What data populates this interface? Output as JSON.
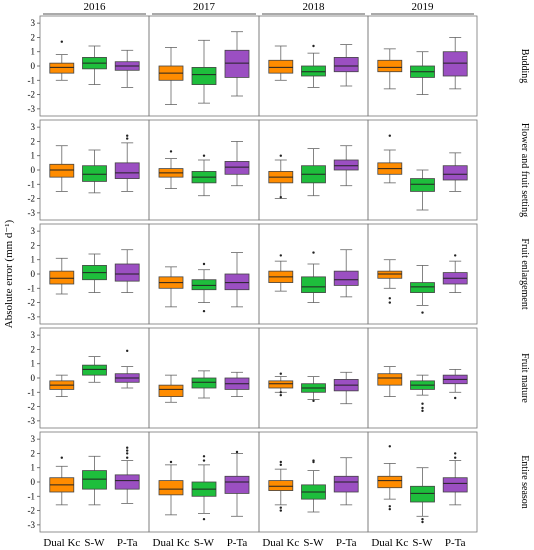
{
  "chart_data": {
    "type": "boxplot",
    "years": [
      "2016",
      "2017",
      "2018",
      "2019"
    ],
    "stages": [
      "Budding",
      "Flower and fruit setting",
      "Fruit enlargement",
      "Fruit mature",
      "Entire season"
    ],
    "methods": [
      "Dual Kc",
      "S-W",
      "P-Ta"
    ],
    "ylabel": "Absolute error (mm d⁻¹)",
    "ylim": [
      -3.5,
      3.5
    ],
    "yticks": [
      -3,
      -2,
      -1,
      0,
      1,
      2,
      3
    ],
    "colors": {
      "Dual Kc": "#ff8c00",
      "S-W": "#1ebe3c",
      "P-Ta": "#9b4fc2"
    },
    "boxes": [
      [
        [
          [
            -1.0,
            -0.5,
            -0.1,
            0.2,
            0.8,
            [
              1.7
            ]
          ],
          [
            -1.3,
            -0.2,
            0.2,
            0.6,
            1.4,
            []
          ],
          [
            -1.5,
            -0.3,
            0.0,
            0.3,
            1.1,
            []
          ]
        ],
        [
          [
            -2.7,
            -1.0,
            -0.5,
            0.0,
            1.3,
            []
          ],
          [
            -2.6,
            -1.3,
            -0.6,
            -0.1,
            1.8,
            []
          ],
          [
            -2.1,
            -0.8,
            0.2,
            1.1,
            2.4,
            []
          ]
        ],
        [
          [
            -1.0,
            -0.5,
            -0.1,
            0.4,
            1.4,
            []
          ],
          [
            -1.5,
            -0.7,
            -0.4,
            0.0,
            0.9,
            [
              1.4
            ]
          ],
          [
            -1.4,
            -0.4,
            0.0,
            0.6,
            1.5,
            []
          ]
        ],
        [
          [
            -1.6,
            -0.4,
            -0.1,
            0.4,
            1.2,
            []
          ],
          [
            -2.0,
            -0.8,
            -0.4,
            0.0,
            1.0,
            []
          ],
          [
            -1.6,
            -0.7,
            0.2,
            1.0,
            2.0,
            []
          ]
        ]
      ],
      [
        [
          [
            -1.5,
            -0.5,
            0.0,
            0.4,
            1.7,
            []
          ],
          [
            -1.6,
            -0.8,
            -0.3,
            0.3,
            1.4,
            []
          ],
          [
            -1.5,
            -0.6,
            -0.2,
            0.5,
            1.9,
            [
              2.2,
              2.4
            ]
          ]
        ],
        [
          [
            -1.3,
            -0.5,
            -0.2,
            0.1,
            0.8,
            [
              1.3
            ]
          ],
          [
            -1.8,
            -0.9,
            -0.5,
            -0.1,
            0.7,
            [
              1.0
            ]
          ],
          [
            -1.1,
            -0.3,
            0.2,
            0.6,
            2.0,
            []
          ]
        ],
        [
          [
            -2.0,
            -0.9,
            -0.5,
            -0.1,
            0.7,
            [
              1.0,
              -1.9
            ]
          ],
          [
            -1.8,
            -0.9,
            -0.3,
            0.3,
            1.5,
            []
          ],
          [
            -1.1,
            0.0,
            0.3,
            0.7,
            1.7,
            []
          ]
        ],
        [
          [
            -0.9,
            -0.3,
            0.1,
            0.5,
            1.4,
            [
              2.4
            ]
          ],
          [
            -2.8,
            -1.5,
            -1.0,
            -0.6,
            0.0,
            []
          ],
          [
            -1.5,
            -0.7,
            -0.3,
            0.3,
            1.2,
            []
          ]
        ]
      ],
      [
        [
          [
            -1.4,
            -0.7,
            -0.3,
            0.2,
            1.1,
            []
          ],
          [
            -1.3,
            -0.4,
            0.1,
            0.6,
            1.4,
            []
          ],
          [
            -1.3,
            -0.5,
            0.0,
            0.7,
            1.7,
            []
          ]
        ],
        [
          [
            -2.3,
            -1.0,
            -0.6,
            -0.2,
            0.5,
            []
          ],
          [
            -2.0,
            -1.1,
            -0.8,
            -0.4,
            0.3,
            [
              0.7,
              -2.6
            ]
          ],
          [
            -2.3,
            -1.1,
            -0.6,
            0.0,
            1.5,
            []
          ]
        ],
        [
          [
            -1.2,
            -0.6,
            -0.2,
            0.2,
            0.9,
            [
              1.3
            ]
          ],
          [
            -2.0,
            -1.3,
            -0.9,
            -0.2,
            0.7,
            [
              1.5
            ]
          ],
          [
            -1.6,
            -0.8,
            -0.4,
            0.2,
            1.7,
            []
          ]
        ],
        [
          [
            -1.0,
            -0.3,
            0.0,
            0.2,
            1.0,
            [
              -1.7,
              -2.0
            ]
          ],
          [
            -2.2,
            -1.3,
            -0.9,
            -0.6,
            0.6,
            [
              -2.7
            ]
          ],
          [
            -1.3,
            -0.7,
            -0.3,
            0.1,
            0.9,
            [
              1.3
            ]
          ]
        ]
      ],
      [
        [
          [
            -1.3,
            -0.8,
            -0.5,
            -0.2,
            0.2,
            []
          ],
          [
            -0.3,
            0.2,
            0.6,
            0.9,
            1.5,
            []
          ],
          [
            -0.7,
            -0.3,
            0.0,
            0.3,
            0.8,
            [
              1.9
            ]
          ]
        ],
        [
          [
            -1.7,
            -1.3,
            -0.8,
            -0.5,
            0.2,
            []
          ],
          [
            -1.4,
            -0.7,
            -0.3,
            0.0,
            0.5,
            []
          ],
          [
            -1.3,
            -0.8,
            -0.4,
            0.0,
            0.4,
            []
          ]
        ],
        [
          [
            -1.0,
            -0.7,
            -0.4,
            -0.2,
            0.1,
            [
              0.3,
              -1.0,
              -1.2
            ]
          ],
          [
            -1.5,
            -1.0,
            -0.7,
            -0.4,
            0.1,
            [
              -1.6
            ]
          ],
          [
            -1.8,
            -0.9,
            -0.5,
            -0.1,
            0.4,
            []
          ]
        ],
        [
          [
            -1.3,
            -0.5,
            0.0,
            0.3,
            0.8,
            []
          ],
          [
            -1.2,
            -0.8,
            -0.5,
            -0.2,
            0.2,
            [
              -1.8,
              -2.1,
              -2.3
            ]
          ],
          [
            -1.0,
            -0.4,
            -0.1,
            0.2,
            0.6,
            [
              -1.4
            ]
          ]
        ]
      ],
      [
        [
          [
            -1.6,
            -0.7,
            -0.2,
            0.3,
            1.1,
            [
              1.7
            ]
          ],
          [
            -1.6,
            -0.5,
            0.2,
            0.8,
            1.8,
            []
          ],
          [
            -1.5,
            -0.5,
            0.1,
            0.5,
            1.5,
            [
              1.7,
              2.0,
              2.2,
              2.4
            ]
          ]
        ],
        [
          [
            -2.3,
            -0.9,
            -0.5,
            0.1,
            1.2,
            [
              1.4
            ]
          ],
          [
            -2.2,
            -1.0,
            -0.5,
            0.0,
            1.2,
            [
              1.5,
              1.8,
              -2.6
            ]
          ],
          [
            -2.4,
            -0.8,
            0.0,
            0.4,
            2.0,
            [
              2.1
            ]
          ]
        ],
        [
          [
            -1.6,
            -0.6,
            -0.3,
            0.1,
            0.9,
            [
              1.2,
              1.4,
              -1.8,
              -2.0
            ]
          ],
          [
            -2.1,
            -1.2,
            -0.7,
            -0.2,
            0.8,
            [
              1.4,
              1.5
            ]
          ],
          [
            -1.6,
            -0.7,
            0.0,
            0.4,
            1.7,
            []
          ]
        ],
        [
          [
            -1.2,
            -0.4,
            0.1,
            0.4,
            1.3,
            [
              2.5,
              -1.7,
              -1.9
            ]
          ],
          [
            -2.4,
            -1.4,
            -0.8,
            -0.3,
            1.0,
            [
              -2.6,
              -2.8
            ]
          ],
          [
            -1.6,
            -0.7,
            -0.1,
            0.3,
            1.5,
            [
              1.7,
              2.0
            ]
          ]
        ]
      ]
    ]
  }
}
